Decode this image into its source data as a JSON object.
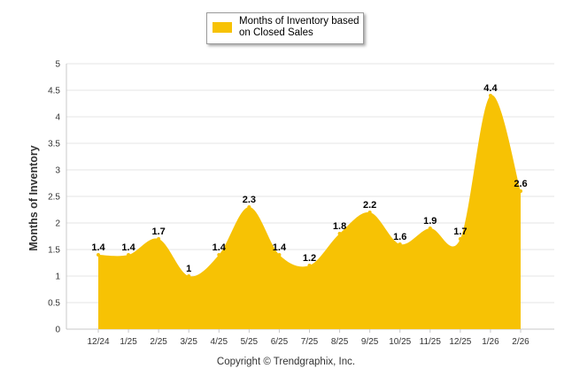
{
  "chart_data": {
    "type": "area",
    "title": "",
    "series_name": "Months of Inventory based on Closed Sales",
    "categories": [
      "12/24",
      "1/25",
      "2/25",
      "3/25",
      "4/25",
      "5/25",
      "6/25",
      "7/25",
      "8/25",
      "9/25",
      "10/25",
      "11/25",
      "12/25",
      "1/26",
      "2/26"
    ],
    "values": [
      1.4,
      1.4,
      1.7,
      1,
      1.4,
      2.3,
      1.4,
      1.2,
      1.8,
      2.2,
      1.6,
      1.9,
      1.7,
      4.4,
      2.6
    ],
    "data_labels": [
      "1.4",
      "1.4",
      "1.7",
      "1",
      "1.4",
      "2.3",
      "1.4",
      "1.2",
      "1.8",
      "2.2",
      "1.6",
      "1.9",
      "1.7",
      "4.4",
      "2.6"
    ],
    "ylabel": "Months of Inventory",
    "xlabel": "",
    "ylim": [
      0,
      5
    ],
    "yticks": [
      "0",
      "0.5",
      "1",
      "1.5",
      "2",
      "2.5",
      "3",
      "3.5",
      "4",
      "4.5",
      "5"
    ],
    "grid": true,
    "legend_position": "top-center",
    "colors": {
      "fill": "#F7C204",
      "grid": "#e6e6e6",
      "axis": "#c8c8c8",
      "text": "#333333"
    }
  },
  "footer": {
    "copyright": "Copyright © Trendgraphix, Inc."
  }
}
